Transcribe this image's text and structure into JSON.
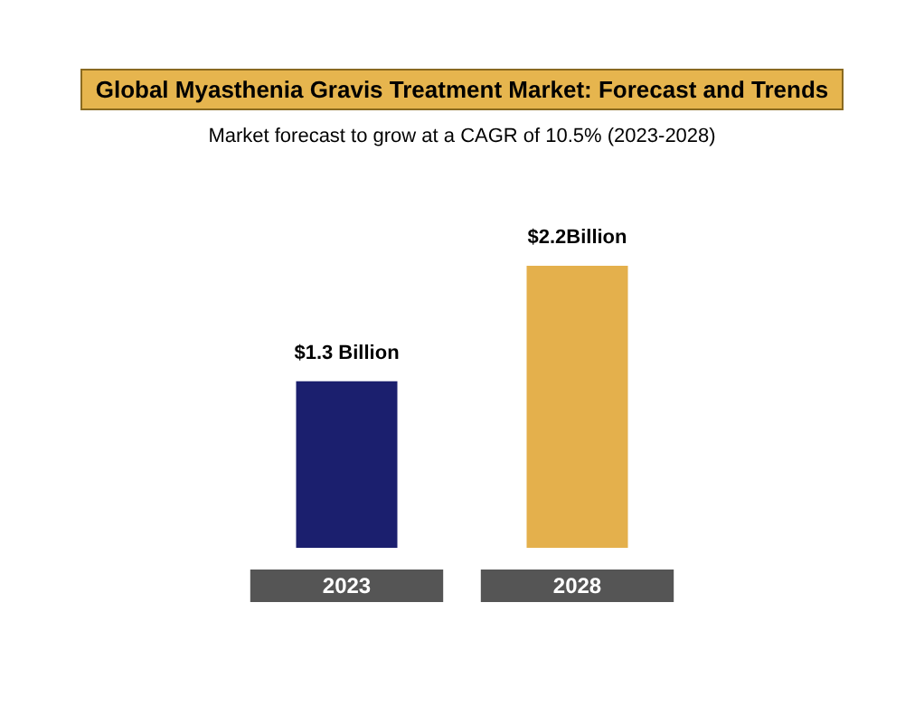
{
  "chart_data": {
    "type": "bar",
    "title": "Global Myasthenia Gravis Treatment Market: Forecast and Trends",
    "subtitle": "Market forecast to grow at a CAGR of 10.5% (2023-2028)",
    "categories": [
      "2023",
      "2028"
    ],
    "values": [
      1.3,
      2.2
    ],
    "colors": [
      "#1b1f6e",
      "#e4b04c"
    ],
    "value_labels": [
      "$1.3 Billion",
      "$2.2Billion"
    ]
  }
}
